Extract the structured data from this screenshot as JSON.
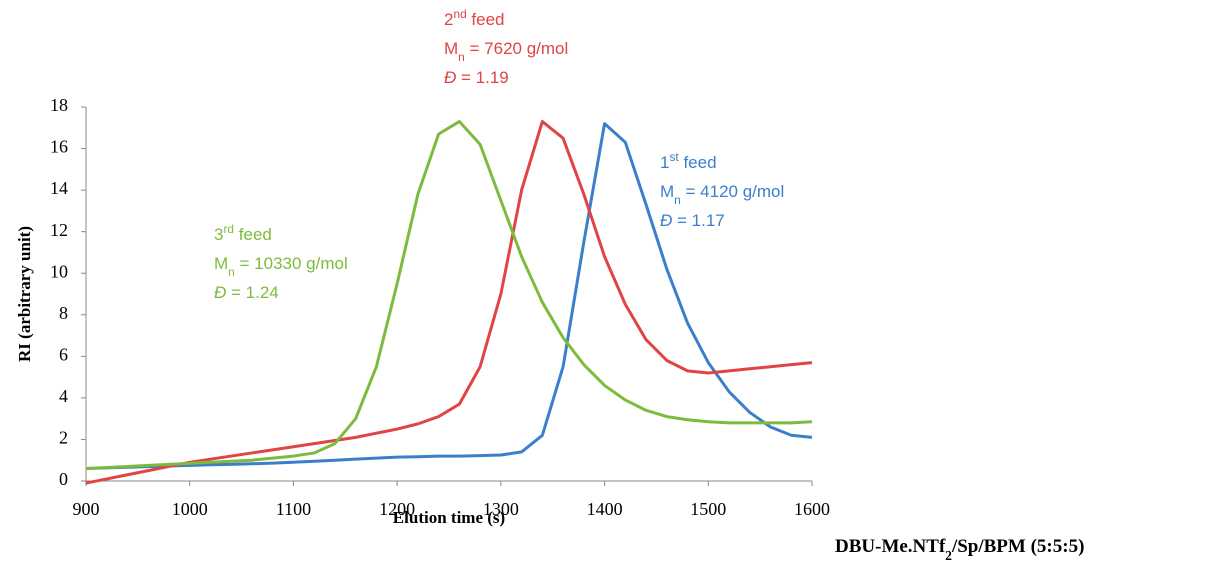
{
  "chart_data": {
    "type": "line",
    "x_label": "Elution time (s)",
    "y_label": "RI (arbitrary unit)",
    "xlim": [
      900,
      1600
    ],
    "xticks": [
      900,
      1000,
      1100,
      1200,
      1300,
      1400,
      1500,
      1600
    ],
    "ylim": [
      0,
      18
    ],
    "yticks": [
      0,
      2,
      4,
      6,
      8,
      10,
      12,
      14,
      16,
      18
    ],
    "grid": false,
    "x": [
      900,
      920,
      940,
      960,
      980,
      1000,
      1020,
      1040,
      1060,
      1080,
      1100,
      1120,
      1140,
      1160,
      1180,
      1200,
      1220,
      1240,
      1260,
      1280,
      1300,
      1320,
      1340,
      1360,
      1380,
      1400,
      1420,
      1440,
      1460,
      1480,
      1500,
      1520,
      1540,
      1560,
      1580,
      1600
    ],
    "series": [
      {
        "color": "#3b7fcb",
        "values": [
          0.6,
          0.63,
          0.66,
          0.69,
          0.72,
          0.75,
          0.78,
          0.8,
          0.83,
          0.86,
          0.9,
          0.95,
          1.0,
          1.05,
          1.1,
          1.15,
          1.17,
          1.2,
          1.2,
          1.22,
          1.25,
          1.4,
          2.2,
          5.5,
          11.5,
          17.2,
          16.3,
          13.3,
          10.2,
          7.6,
          5.7,
          4.3,
          3.3,
          2.6,
          2.2,
          2.1
        ]
      },
      {
        "color": "#e04444",
        "values": [
          -0.1,
          0.1,
          0.3,
          0.5,
          0.7,
          0.9,
          1.05,
          1.2,
          1.35,
          1.5,
          1.65,
          1.8,
          1.95,
          2.1,
          2.3,
          2.5,
          2.75,
          3.1,
          3.7,
          5.5,
          9.0,
          14.0,
          17.3,
          16.5,
          13.8,
          10.8,
          8.5,
          6.8,
          5.8,
          5.3,
          5.2,
          5.3,
          5.4,
          5.5,
          5.6,
          5.7
        ]
      },
      {
        "color": "#7dbb3e",
        "values": [
          0.6,
          0.65,
          0.7,
          0.75,
          0.8,
          0.85,
          0.9,
          0.95,
          1.0,
          1.1,
          1.2,
          1.35,
          1.8,
          3.0,
          5.5,
          9.5,
          13.8,
          16.7,
          17.3,
          16.2,
          13.5,
          10.8,
          8.6,
          6.9,
          5.6,
          4.6,
          3.9,
          3.4,
          3.1,
          2.95,
          2.85,
          2.8,
          2.8,
          2.8,
          2.8,
          2.85
        ]
      }
    ],
    "annotations": [
      {
        "color": "#e04444",
        "lines": [
          [
            {
              "text": "2"
            },
            {
              "text": "nd",
              "sup": true
            },
            {
              "text": " feed"
            }
          ],
          [
            {
              "text": "M"
            },
            {
              "text": "n",
              "sub": true
            },
            {
              "text": " = 7620 g/mol"
            }
          ],
          [
            {
              "text": "Đ",
              "italic": true
            },
            {
              "text": " = 1.19"
            }
          ]
        ]
      },
      {
        "color": "#3b7fcb",
        "lines": [
          [
            {
              "text": "1"
            },
            {
              "text": "st",
              "sup": true
            },
            {
              "text": " feed"
            }
          ],
          [
            {
              "text": "M"
            },
            {
              "text": "n",
              "sub": true
            },
            {
              "text": " = 4120 g/mol"
            }
          ],
          [
            {
              "text": "Đ",
              "italic": true
            },
            {
              "text": " = 1.17"
            }
          ]
        ]
      },
      {
        "color": "#7dbb3e",
        "lines": [
          [
            {
              "text": "3"
            },
            {
              "text": "rd",
              "sup": true
            },
            {
              "text": " feed"
            }
          ],
          [
            {
              "text": "M"
            },
            {
              "text": "n",
              "sub": true
            },
            {
              "text": " = 10330 g/mol"
            }
          ],
          [
            {
              "text": "Đ",
              "italic": true
            },
            {
              "text": " = 1.24"
            }
          ]
        ]
      }
    ],
    "caption": [
      {
        "text": "DBU-Me.NTf"
      },
      {
        "text": "2",
        "sub": true
      },
      {
        "text": "/Sp/BPM (5:5:5)"
      }
    ]
  }
}
